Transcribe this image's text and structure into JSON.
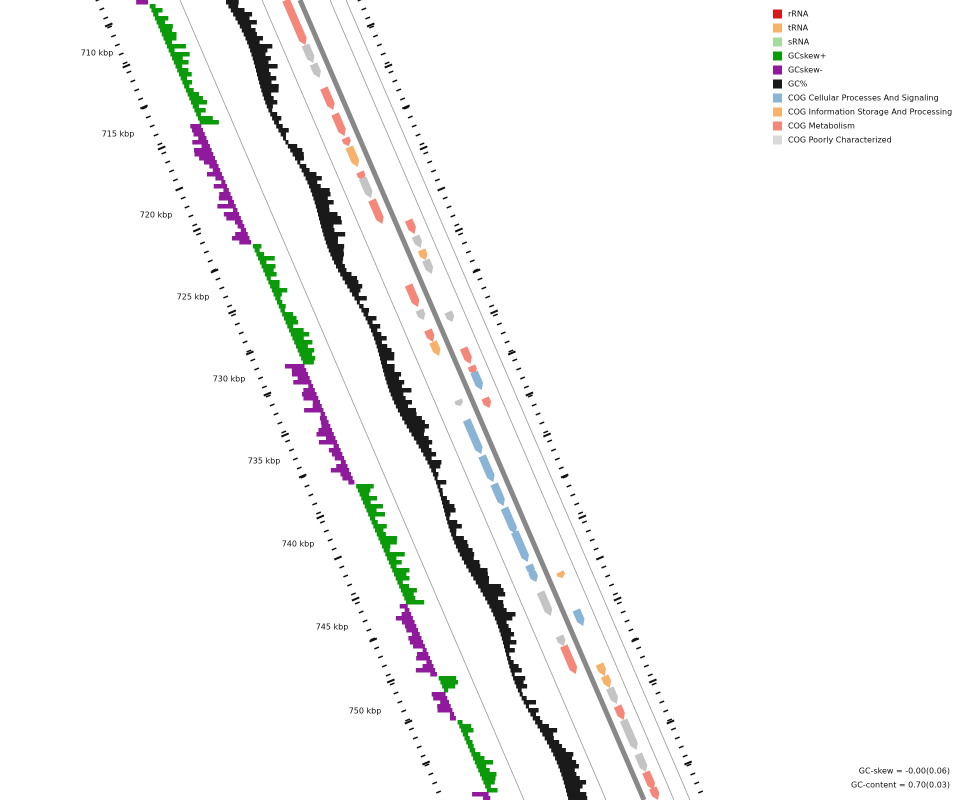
{
  "legend": {
    "items": [
      "rRNA",
      "tRNA",
      "sRNA",
      "GCskew+",
      "GCskew-",
      "GC%",
      "COG Cellular Processes And Signaling",
      "COG Information Storage And Processing",
      "COG Metabolism",
      "COG Poorly Characterized"
    ]
  },
  "ticks": {
    "labels": [
      "710 kbp",
      "715 kbp",
      "720 kbp",
      "725 kbp",
      "730 kbp",
      "735 kbp",
      "740 kbp",
      "745 kbp",
      "750 kbp"
    ]
  },
  "footer": {
    "gc_skew": "GC-skew = -0.00(0.06)",
    "gc_content": "GC-content = 0.70(0.03)"
  }
}
